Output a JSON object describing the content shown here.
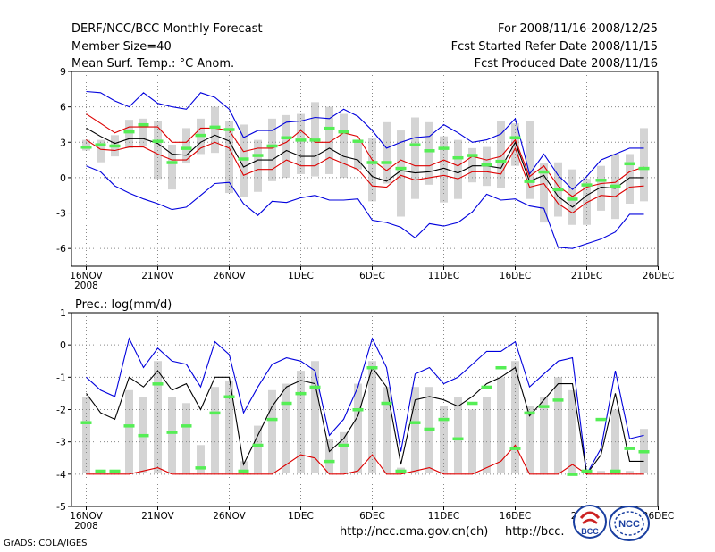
{
  "header": {
    "left": [
      "DERF/NCC/BCC Monthly Forecast",
      "Member Size=40",
      "Mean Surf. Temp.: °C Anom."
    ],
    "right": [
      "For 2008/11/16-2008/12/25",
      "Fcst Started Refer Date 2008/11/15",
      "Fcst Produced Date 2008/11/16"
    ]
  },
  "footer": {
    "grads": "GrADS: COLA/IGES",
    "link1": "http://ncc.cma.gov.cn(ch)",
    "link2": "http://bcc."
  },
  "logos": {
    "bcc": "BCC",
    "ncc": "NCC"
  },
  "colors": {
    "bar": "#d4d4d4",
    "median": "#55ee55",
    "envelope": "#0000dd",
    "spread": "#dd0000",
    "mean": "#000000",
    "grid": "#888888"
  },
  "chart_data": [
    {
      "type": "line",
      "title": "Mean Surf. Temp.: °C Anom.",
      "xlabel": "",
      "ylabel": "°C Anom.",
      "ylim": [
        -7.5,
        9
      ],
      "yticks": [
        9,
        6,
        3,
        0,
        -3,
        -6
      ],
      "xticks": [
        {
          "day": 0,
          "label": "16NOV",
          "sub": "2008"
        },
        {
          "day": 5,
          "label": "21NOV"
        },
        {
          "day": 10,
          "label": "26NOV"
        },
        {
          "day": 15,
          "label": "1DEC"
        },
        {
          "day": 20,
          "label": "6DEC"
        },
        {
          "day": 25,
          "label": "11DEC"
        },
        {
          "day": 30,
          "label": "16DEC"
        },
        {
          "day": 35,
          "label": "21DEC"
        },
        {
          "day": 40,
          "label": "26DEC"
        }
      ],
      "bar_low": [
        2.3,
        1.3,
        1.8,
        2.5,
        2.7,
        -0.1,
        -1.0,
        1.2,
        2.0,
        2.1,
        -1.3,
        -1.6,
        -1.2,
        -0.3,
        0.0,
        0.3,
        0.1,
        0.3,
        0.0,
        0.7,
        -2.0,
        -0.5,
        -3.3,
        -1.8,
        -0.6,
        -2.1,
        -1.8,
        -0.4,
        -0.7,
        -0.9,
        1.0,
        -1.8,
        -3.8,
        -3.3,
        -4.0,
        -4.0,
        -2.8,
        -3.5,
        -2.2,
        -2.0
      ],
      "bar_high": [
        3.2,
        3.2,
        3.6,
        4.9,
        5.0,
        4.8,
        2.8,
        4.2,
        5.0,
        6.0,
        4.8,
        4.5,
        3.2,
        5.0,
        5.3,
        5.4,
        6.4,
        6.0,
        5.4,
        3.0,
        3.4,
        4.7,
        4.0,
        5.1,
        4.7,
        3.5,
        3.2,
        2.5,
        2.6,
        4.8,
        4.6,
        4.8,
        1.2,
        1.3,
        0.7,
        -0.1,
        1.0,
        2.0,
        2.0,
        4.2
      ],
      "series": [
        {
          "name": "Ensemble max",
          "color": "blue",
          "values": [
            7.3,
            7.2,
            6.5,
            6.0,
            7.2,
            6.3,
            6.0,
            5.8,
            7.2,
            6.8,
            5.8,
            3.4,
            4.0,
            4.0,
            4.7,
            4.8,
            5.1,
            5.0,
            5.8,
            5.2,
            4.0,
            2.5,
            3.0,
            3.4,
            3.5,
            4.5,
            3.8,
            3.0,
            3.2,
            3.7,
            5.0,
            0.3,
            2.0,
            0.2,
            -1.0,
            0.1,
            1.5,
            2.0,
            2.5,
            2.5
          ]
        },
        {
          "name": "Upper spread",
          "color": "red",
          "values": [
            5.4,
            4.6,
            3.8,
            4.3,
            4.3,
            4.3,
            3.0,
            3.0,
            4.2,
            4.2,
            4.0,
            2.2,
            2.5,
            2.5,
            3.0,
            4.0,
            3.0,
            3.0,
            3.8,
            3.5,
            1.5,
            0.6,
            1.5,
            1.0,
            1.0,
            1.5,
            1.0,
            1.8,
            1.5,
            1.8,
            3.2,
            0.1,
            1.0,
            -0.7,
            -1.6,
            -0.8,
            -0.5,
            -0.4,
            0.5,
            0.9
          ]
        },
        {
          "name": "Ensemble mean",
          "color": "black",
          "values": [
            4.2,
            3.5,
            2.9,
            3.3,
            3.3,
            2.9,
            2.0,
            1.9,
            3.0,
            3.6,
            3.1,
            0.9,
            1.5,
            1.5,
            2.3,
            1.8,
            1.8,
            2.5,
            1.8,
            1.5,
            0.1,
            -0.3,
            0.6,
            0.4,
            0.5,
            0.8,
            0.4,
            1.0,
            1.0,
            0.8,
            3.0,
            -0.3,
            0.2,
            -1.6,
            -2.5,
            -1.5,
            -0.8,
            -0.9,
            0.0,
            0.0
          ]
        },
        {
          "name": "Lower spread",
          "color": "red",
          "values": [
            3.2,
            2.4,
            2.3,
            2.6,
            2.6,
            2.0,
            1.5,
            1.5,
            2.5,
            3.0,
            2.5,
            0.2,
            0.7,
            0.7,
            1.5,
            1.0,
            1.0,
            1.7,
            1.2,
            0.7,
            -0.7,
            -0.8,
            0.2,
            -0.2,
            0.0,
            0.2,
            -0.1,
            0.5,
            0.5,
            0.3,
            2.5,
            -0.8,
            -0.5,
            -2.2,
            -3.0,
            -2.1,
            -1.5,
            -1.6,
            -0.8,
            -0.7
          ]
        },
        {
          "name": "Ensemble min",
          "color": "blue",
          "values": [
            1.0,
            0.5,
            -0.7,
            -1.3,
            -1.8,
            -2.2,
            -2.7,
            -2.5,
            -1.5,
            -0.5,
            -0.4,
            -2.2,
            -3.2,
            -2.0,
            -2.1,
            -1.7,
            -1.5,
            -1.9,
            -1.9,
            -1.8,
            -3.6,
            -3.8,
            -4.2,
            -5.1,
            -3.9,
            -4.1,
            -3.8,
            -2.9,
            -1.4,
            -1.9,
            -1.8,
            -2.4,
            -2.6,
            -5.9,
            -6.0,
            -5.6,
            -5.2,
            -4.6,
            -3.1,
            -3.1
          ]
        }
      ],
      "medians": [
        2.6,
        2.8,
        2.7,
        3.9,
        4.5,
        3.1,
        1.3,
        2.5,
        3.6,
        4.3,
        4.1,
        1.6,
        1.9,
        2.7,
        3.4,
        3.2,
        3.2,
        4.2,
        3.9,
        3.1,
        1.3,
        1.3,
        0.8,
        2.8,
        2.3,
        2.5,
        1.7,
        1.9,
        1.1,
        1.4,
        3.4,
        -0.3,
        0.5,
        -1.0,
        -1.8,
        -0.6,
        -0.2,
        -0.7,
        1.2,
        0.8
      ]
    },
    {
      "type": "line",
      "title": "Prec.: log(mm/d)",
      "xlabel": "",
      "ylabel": "log(mm/d)",
      "ylim": [
        -5,
        1
      ],
      "yticks": [
        1,
        0,
        -1,
        -2,
        -3,
        -4,
        -5
      ],
      "xticks": [
        {
          "day": 0,
          "label": "16NOV",
          "sub": "2008"
        },
        {
          "day": 5,
          "label": "21NOV"
        },
        {
          "day": 10,
          "label": "26NOV"
        },
        {
          "day": 15,
          "label": "1DEC"
        },
        {
          "day": 20,
          "label": "6DEC"
        },
        {
          "day": 25,
          "label": "11DEC"
        },
        {
          "day": 30,
          "label": "16DEC"
        },
        {
          "day": 35,
          "label": "21DEC"
        },
        {
          "day": 40,
          "label": "26DEC"
        }
      ],
      "bar_low": -3.95,
      "bar_high": [
        -1.6,
        -3.9,
        -3.9,
        -1.4,
        -1.6,
        -0.5,
        -1.6,
        -1.8,
        -3.1,
        -1.3,
        -1.1,
        -3.6,
        -2.5,
        -1.4,
        -1.2,
        -0.8,
        -0.5,
        -2.9,
        -2.7,
        -1.2,
        -0.5,
        -1.3,
        -3.8,
        -1.3,
        -1.3,
        -1.9,
        -1.6,
        -2.0,
        -1.6,
        -1.0,
        -0.5,
        -1.9,
        -1.6,
        -1.0,
        -1.4,
        -3.9,
        -3.9,
        -2.0,
        -3.9,
        -2.6
      ],
      "series": [
        {
          "name": "Ensemble max",
          "color": "blue",
          "values": [
            -1.0,
            -1.4,
            -1.6,
            0.2,
            -0.7,
            -0.1,
            -0.5,
            -0.6,
            -1.3,
            0.1,
            -0.3,
            -2.1,
            -1.3,
            -0.6,
            -0.4,
            -0.5,
            -0.8,
            -2.8,
            -2.3,
            -1.3,
            0.2,
            -0.7,
            -3.3,
            -0.9,
            -0.7,
            -1.2,
            -1.0,
            -0.6,
            -0.2,
            -0.2,
            0.1,
            -1.3,
            -0.9,
            -0.5,
            -0.4,
            -4.0,
            -3.2,
            -0.8,
            -2.9,
            -2.8
          ]
        },
        {
          "name": "Ensemble mean",
          "color": "black",
          "values": [
            -1.5,
            -2.1,
            -2.3,
            -1.0,
            -1.3,
            -0.8,
            -1.4,
            -1.2,
            -2.0,
            -1.0,
            -1.0,
            -3.7,
            -2.8,
            -1.9,
            -1.3,
            -1.1,
            -1.2,
            -3.3,
            -2.9,
            -2.2,
            -0.7,
            -1.3,
            -3.7,
            -1.7,
            -1.6,
            -1.7,
            -1.9,
            -1.6,
            -1.2,
            -1.0,
            -0.7,
            -2.2,
            -1.7,
            -1.2,
            -1.2,
            -4.0,
            -3.4,
            -1.5,
            -3.6,
            -3.6
          ]
        },
        {
          "name": "Ensemble min",
          "color": "red",
          "values": [
            -4.0,
            -4.0,
            -4.0,
            -4.0,
            -3.9,
            -3.8,
            -4.0,
            -4.0,
            -4.0,
            -4.0,
            -4.0,
            -4.0,
            -4.0,
            -4.0,
            -3.7,
            -3.4,
            -3.5,
            -4.0,
            -4.0,
            -3.9,
            -3.4,
            -4.0,
            -4.0,
            -3.9,
            -3.8,
            -4.0,
            -4.0,
            -4.0,
            -3.8,
            -3.6,
            -3.1,
            -4.0,
            -4.0,
            -4.0,
            -3.7,
            -4.0,
            -4.0,
            -4.0,
            -4.0,
            -4.0
          ]
        }
      ],
      "medians": [
        -2.4,
        -3.9,
        -3.9,
        -2.5,
        -2.8,
        -1.2,
        -2.7,
        -2.5,
        -3.8,
        -2.1,
        -1.6,
        -3.9,
        -3.1,
        -2.3,
        -1.8,
        -1.5,
        -1.3,
        -3.6,
        -3.1,
        -2.0,
        -0.7,
        -1.8,
        -3.9,
        -2.4,
        -2.6,
        -2.3,
        -2.9,
        -1.8,
        -1.3,
        -0.7,
        -3.2,
        -2.1,
        -1.9,
        -1.7,
        -4.0,
        -3.9,
        -2.3,
        -3.9,
        -3.2,
        -3.3
      ]
    }
  ]
}
